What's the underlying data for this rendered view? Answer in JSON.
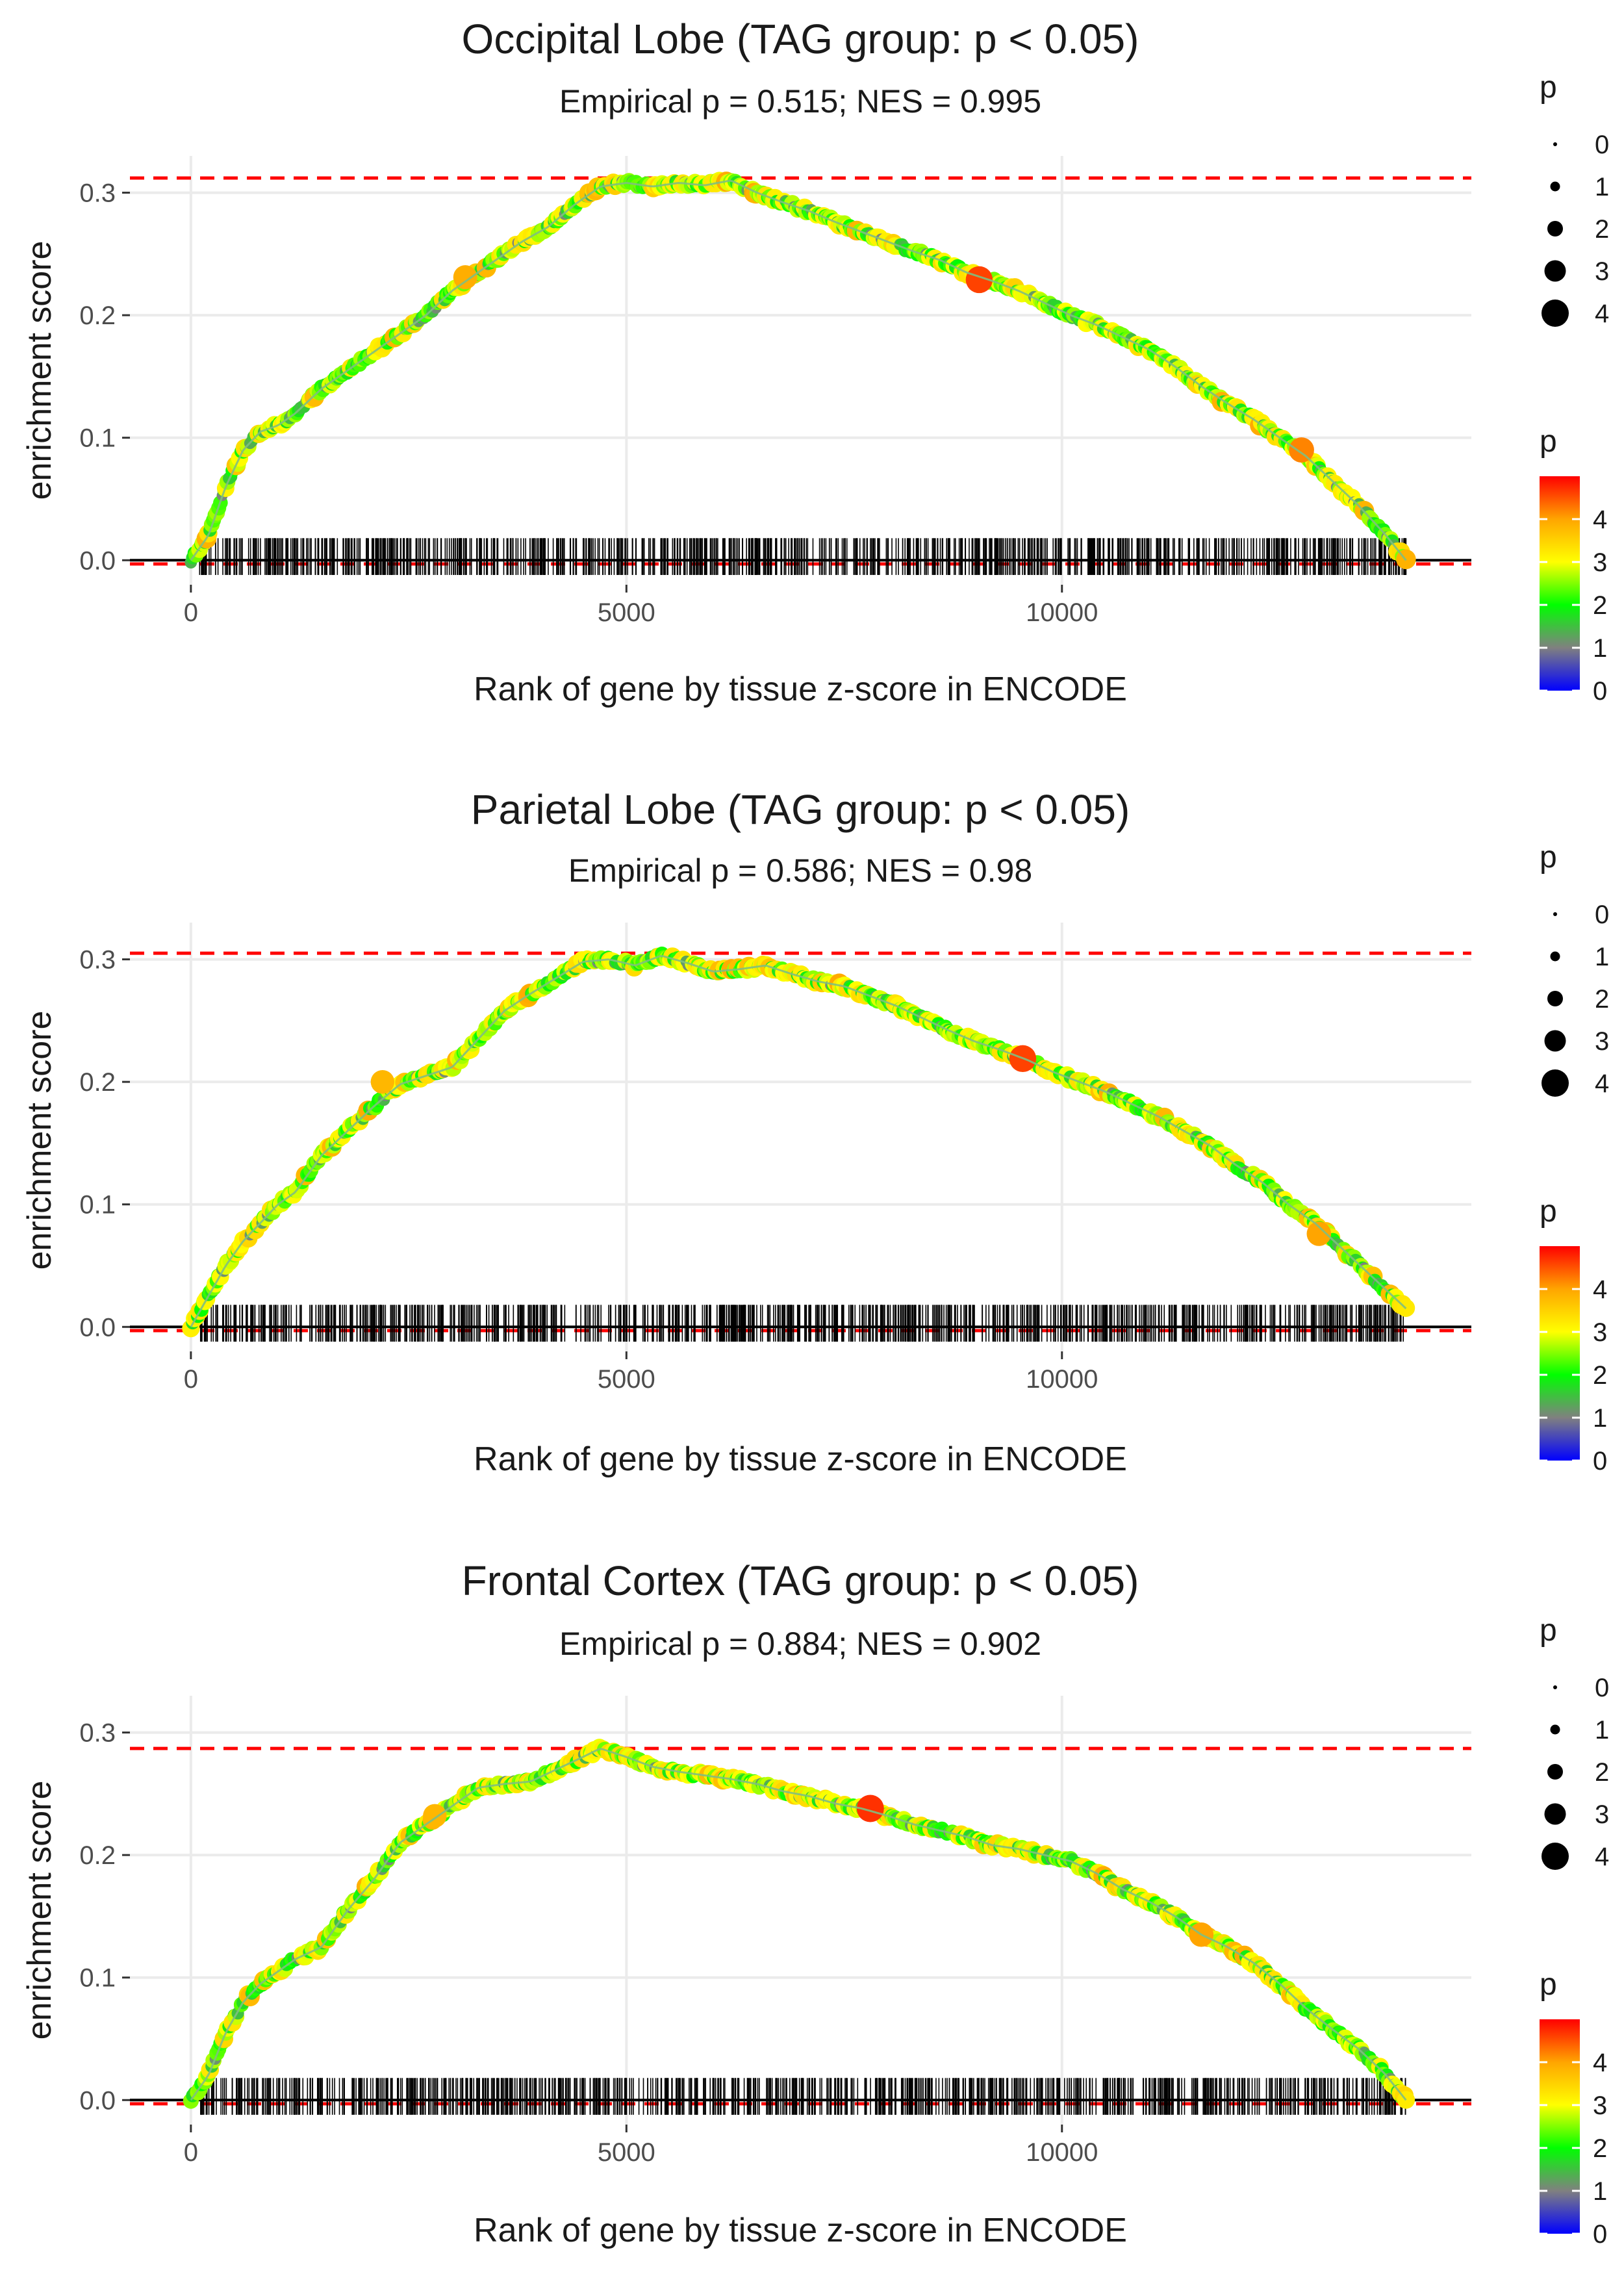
{
  "chart_data": [
    {
      "type": "line",
      "title": "Occipital Lobe (TAG group: p < 0.05)",
      "subtitle": "Empirical p = 0.515; NES = 0.995",
      "xlabel": "Rank of gene by tissue z-score in ENCODE",
      "ylabel": "enrichment score",
      "xlim": [
        -700,
        14700
      ],
      "ylim": [
        -0.02,
        0.33
      ],
      "x_ticks": [
        0,
        5000,
        10000
      ],
      "y_ticks": [
        0.0,
        0.1,
        0.2,
        0.3
      ],
      "max_es": 0.312,
      "x_max": 13950,
      "curve": {
        "x": [
          0,
          200,
          400,
          600,
          800,
          1000,
          1200,
          1500,
          1800,
          2100,
          2400,
          2700,
          3000,
          3200,
          3500,
          3800,
          4100,
          4400,
          4700,
          5000,
          5300,
          5600,
          5900,
          6200,
          6500,
          6800,
          7100,
          7400,
          7700,
          8000,
          8300,
          8600,
          8900,
          9200,
          9500,
          9800,
          10100,
          10400,
          10700,
          11000,
          11300,
          11600,
          11900,
          12200,
          12500,
          12800,
          13100,
          13400,
          13700,
          13950
        ],
        "es": [
          0.0,
          0.02,
          0.06,
          0.09,
          0.105,
          0.11,
          0.12,
          0.14,
          0.155,
          0.17,
          0.185,
          0.2,
          0.22,
          0.23,
          0.245,
          0.26,
          0.272,
          0.29,
          0.305,
          0.308,
          0.305,
          0.308,
          0.306,
          0.31,
          0.3,
          0.292,
          0.285,
          0.276,
          0.268,
          0.26,
          0.252,
          0.245,
          0.235,
          0.228,
          0.22,
          0.21,
          0.2,
          0.192,
          0.182,
          0.172,
          0.158,
          0.142,
          0.128,
          0.115,
          0.1,
          0.085,
          0.065,
          0.045,
          0.022,
          0.0
        ]
      },
      "highlight": [
        {
          "x": 9050,
          "es": 0.229,
          "p": 4.6
        },
        {
          "x": 12750,
          "es": 0.09,
          "p": 4.2
        },
        {
          "x": 3150,
          "es": 0.231,
          "p": 3.9
        }
      ]
    },
    {
      "type": "line",
      "title": "Parietal Lobe (TAG group: p < 0.05)",
      "subtitle": "Empirical p = 0.586; NES = 0.98",
      "xlabel": "Rank of gene by tissue z-score in ENCODE",
      "ylabel": "enrichment score",
      "xlim": [
        -700,
        14700
      ],
      "ylim": [
        -0.02,
        0.33
      ],
      "x_ticks": [
        0,
        5000,
        10000
      ],
      "y_ticks": [
        0.0,
        0.1,
        0.2,
        0.3
      ],
      "max_es": 0.305,
      "x_max": 13950,
      "curve": {
        "x": [
          0,
          200,
          400,
          600,
          800,
          1000,
          1200,
          1500,
          1800,
          2100,
          2400,
          2700,
          3000,
          3300,
          3600,
          3900,
          4200,
          4500,
          4800,
          5100,
          5400,
          5700,
          6000,
          6300,
          6600,
          6900,
          7200,
          7500,
          7800,
          8100,
          8400,
          8700,
          9000,
          9300,
          9600,
          9900,
          10200,
          10500,
          10800,
          11100,
          11400,
          11700,
          12000,
          12300,
          12600,
          12900,
          13200,
          13500,
          13800,
          13950
        ],
        "es": [
          0.0,
          0.025,
          0.05,
          0.07,
          0.085,
          0.1,
          0.11,
          0.14,
          0.16,
          0.18,
          0.198,
          0.205,
          0.212,
          0.235,
          0.258,
          0.272,
          0.285,
          0.298,
          0.3,
          0.295,
          0.303,
          0.297,
          0.29,
          0.292,
          0.295,
          0.288,
          0.282,
          0.278,
          0.27,
          0.262,
          0.252,
          0.242,
          0.233,
          0.226,
          0.218,
          0.208,
          0.2,
          0.192,
          0.182,
          0.172,
          0.16,
          0.148,
          0.132,
          0.118,
          0.1,
          0.085,
          0.065,
          0.045,
          0.025,
          0.015
        ]
      },
      "highlight": [
        {
          "x": 9550,
          "es": 0.219,
          "p": 4.6
        },
        {
          "x": 12950,
          "es": 0.076,
          "p": 4.0
        },
        {
          "x": 2200,
          "es": 0.2,
          "p": 3.8
        }
      ]
    },
    {
      "type": "line",
      "title": "Frontal Cortex (TAG group: p < 0.05)",
      "subtitle": "Empirical p = 0.884; NES = 0.902",
      "xlabel": "Rank of gene by tissue z-score in ENCODE",
      "ylabel": "enrichment score",
      "xlim": [
        -700,
        14700
      ],
      "ylim": [
        -0.02,
        0.33
      ],
      "x_ticks": [
        0,
        5000,
        10000
      ],
      "y_ticks": [
        0.0,
        0.1,
        0.2,
        0.3
      ],
      "max_es": 0.287,
      "x_max": 13950,
      "curve": {
        "x": [
          0,
          200,
          400,
          600,
          800,
          1000,
          1200,
          1500,
          1800,
          2100,
          2400,
          2700,
          3000,
          3300,
          3600,
          3900,
          4200,
          4500,
          4700,
          5000,
          5300,
          5600,
          5900,
          6200,
          6500,
          6800,
          7100,
          7400,
          7700,
          8000,
          8300,
          8600,
          8900,
          9200,
          9500,
          9800,
          10100,
          10400,
          10700,
          11000,
          11300,
          11600,
          11900,
          12200,
          12500,
          12800,
          13100,
          13400,
          13700,
          13950
        ],
        "es": [
          0.0,
          0.02,
          0.055,
          0.08,
          0.095,
          0.105,
          0.115,
          0.125,
          0.155,
          0.18,
          0.21,
          0.225,
          0.24,
          0.255,
          0.258,
          0.26,
          0.27,
          0.28,
          0.287,
          0.28,
          0.272,
          0.268,
          0.265,
          0.262,
          0.258,
          0.252,
          0.248,
          0.242,
          0.238,
          0.232,
          0.225,
          0.22,
          0.215,
          0.208,
          0.205,
          0.2,
          0.195,
          0.185,
          0.172,
          0.162,
          0.15,
          0.135,
          0.125,
          0.112,
          0.095,
          0.075,
          0.058,
          0.042,
          0.022,
          0.0
        ]
      },
      "highlight": [
        {
          "x": 7800,
          "es": 0.238,
          "p": 4.7
        },
        {
          "x": 11600,
          "es": 0.135,
          "p": 4.0
        },
        {
          "x": 2800,
          "es": 0.232,
          "p": 3.8
        }
      ]
    }
  ],
  "legend": {
    "size_title": "p",
    "size_labels": [
      "0",
      "1",
      "2",
      "3",
      "4"
    ],
    "color_title": "p",
    "color_labels": [
      "0",
      "1",
      "2",
      "3",
      "4"
    ],
    "color_stops": [
      "#0000ff",
      "#808080",
      "#00ff00",
      "#ffff00",
      "#ffa500",
      "#ff0000"
    ]
  },
  "colors": {
    "grid": "#ebebeb",
    "max_line": "#ff0000",
    "baseline": "#000000",
    "rug": "#000000",
    "curve_line": "#7fbf7f"
  }
}
